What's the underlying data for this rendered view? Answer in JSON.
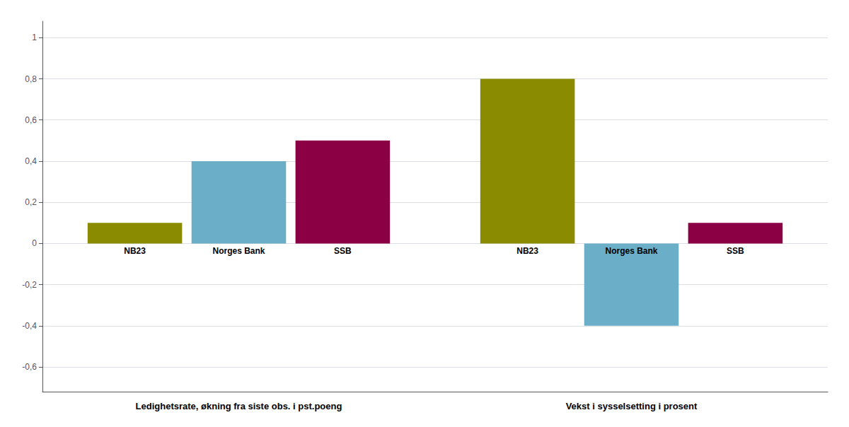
{
  "chart_data": {
    "type": "bar",
    "categories": [
      "Ledighetsrate, økning fra siste obs. i pst.poeng",
      "Vekst i sysselsetting i prosent"
    ],
    "series": [
      {
        "name": "NB23",
        "color": "#8B8B00",
        "values": [
          0.1,
          0.8
        ]
      },
      {
        "name": "Norges Bank",
        "color": "#6AAEC8",
        "values": [
          0.4,
          -0.4
        ]
      },
      {
        "name": "SSB",
        "color": "#8B0045",
        "values": [
          0.5,
          0.1
        ]
      }
    ],
    "ylim": [
      -0.72,
      1.08
    ],
    "yticks": [
      {
        "value": -0.6,
        "label": "-0,6"
      },
      {
        "value": -0.4,
        "label": "-0,4"
      },
      {
        "value": -0.2,
        "label": "-0,2"
      },
      0,
      {
        "value": 0.2,
        "label": "0,2"
      },
      {
        "value": 0.4,
        "label": "0,4"
      },
      {
        "value": 0.6,
        "label": "0,6"
      },
      {
        "value": 0.8,
        "label": "0,8"
      },
      1
    ],
    "grid": true
  }
}
